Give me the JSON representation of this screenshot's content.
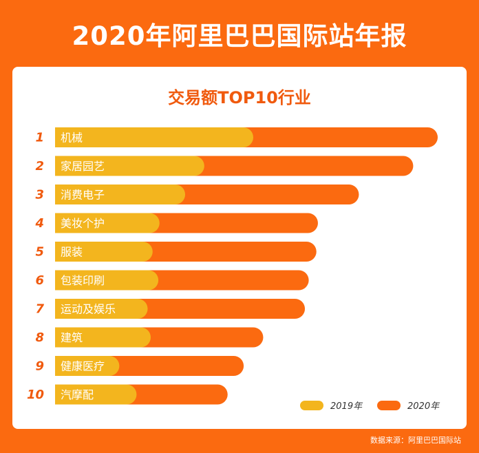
{
  "header": {
    "title": "2020年阿里巴巴国际站年报"
  },
  "footer": {
    "source": "数据来源：阿里巴巴国际站"
  },
  "colors": {
    "bar_2019": "#f3b51e",
    "bar_2020": "#fb6a10",
    "rank": "#f05a0e",
    "label": "#ffffff"
  },
  "chart_data": {
    "type": "bar",
    "orientation": "horizontal",
    "title": "交易额TOP10行业",
    "xlabel": "",
    "ylabel": "",
    "grid": false,
    "legend_position": "bottom-right",
    "xlim": [
      0,
      100
    ],
    "ranks": [
      "1",
      "2",
      "3",
      "4",
      "5",
      "6",
      "7",
      "8",
      "9",
      "10"
    ],
    "categories": [
      "机械",
      "家居园艺",
      "消费电子",
      "美妆个护",
      "服装",
      "包装印刷",
      "运动及娱乐",
      "建筑",
      "健康医疗",
      "汽摩配"
    ],
    "series": [
      {
        "name": "2019年",
        "color": "#f3b51e",
        "values": [
          51.8,
          39.0,
          34.0,
          27.3,
          25.5,
          27.0,
          24.2,
          25.0,
          16.8,
          21.3
        ]
      },
      {
        "name": "2020年",
        "color": "#fb6a10",
        "values": [
          100.0,
          93.6,
          79.4,
          68.7,
          68.3,
          66.3,
          65.3,
          54.4,
          49.3,
          45.1
        ]
      }
    ]
  }
}
